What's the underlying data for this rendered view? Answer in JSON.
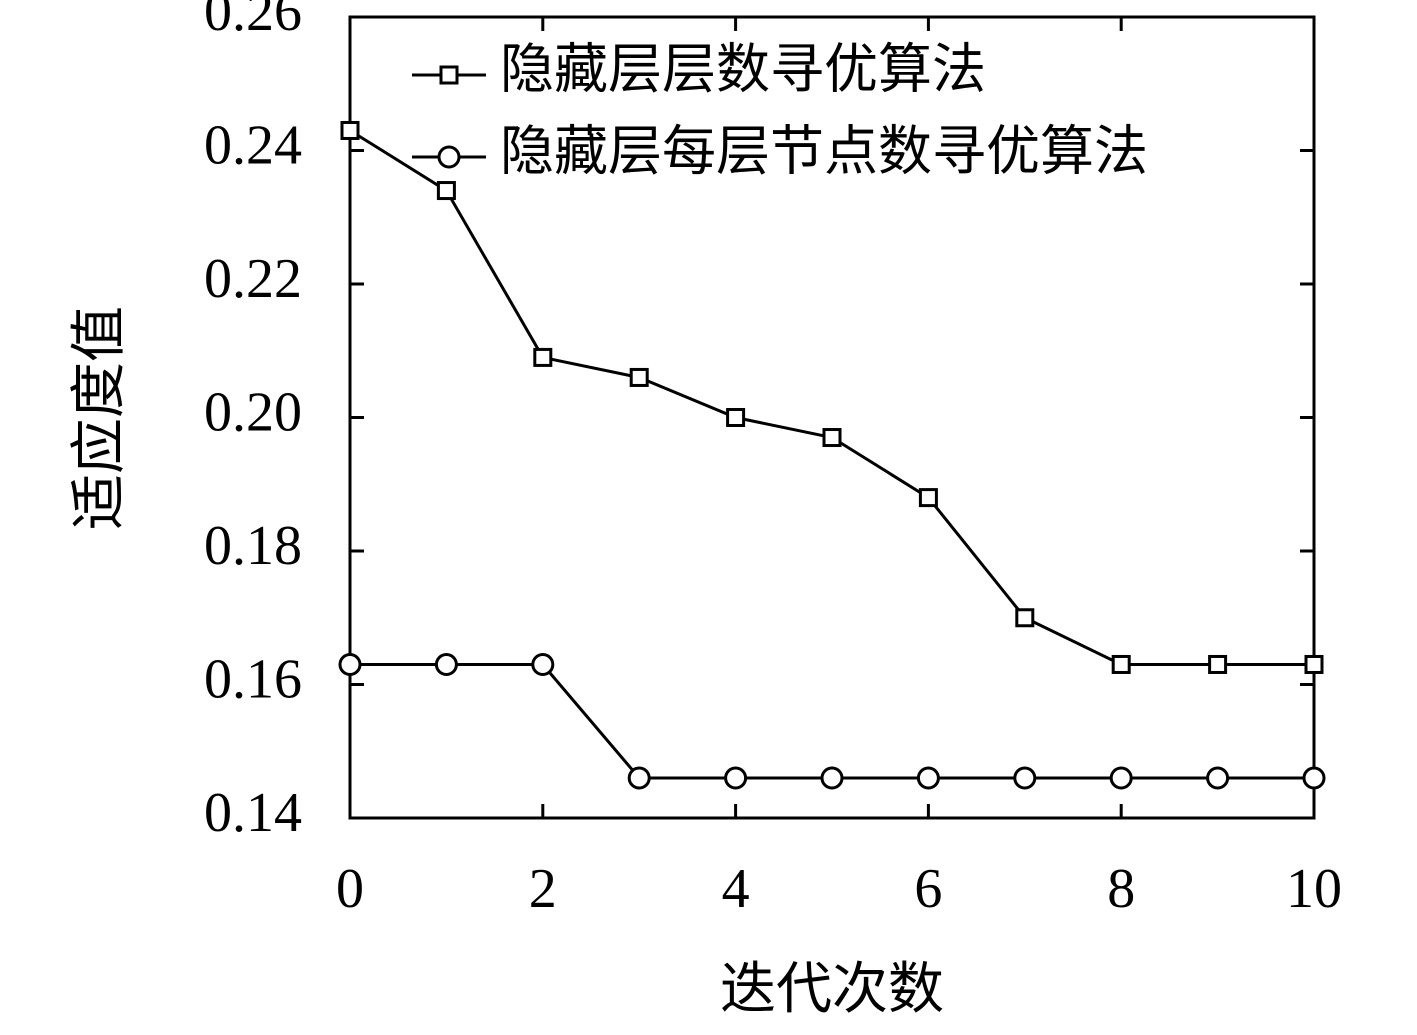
{
  "chart_data": {
    "type": "line",
    "x_label": "迭代次数",
    "y_label": "适应度值",
    "x": [
      0,
      1,
      2,
      3,
      4,
      5,
      6,
      7,
      8,
      9,
      10
    ],
    "series": [
      {
        "name": "隐藏层层数寻优算法",
        "color": "#000000",
        "marker": "square",
        "values": [
          0.243,
          0.234,
          0.209,
          0.206,
          0.2,
          0.197,
          0.188,
          0.17,
          0.163,
          0.163,
          0.163
        ]
      },
      {
        "name": "隐藏层每层节点数寻优算法",
        "color": "#000000",
        "marker": "circle",
        "values": [
          0.163,
          0.163,
          0.163,
          0.146,
          0.146,
          0.146,
          0.146,
          0.146,
          0.146,
          0.146,
          0.146
        ]
      }
    ],
    "xlim": [
      0,
      10
    ],
    "xticks": [
      0,
      2,
      4,
      6,
      8,
      10
    ],
    "ylim": [
      0.14,
      0.26
    ],
    "yticks": [
      {
        "value": 0.14,
        "label": "0.14"
      },
      {
        "value": 0.16,
        "label": "0.16"
      },
      {
        "value": 0.18,
        "label": "0.18"
      },
      {
        "value": 0.2,
        "label": "0.20"
      },
      {
        "value": 0.22,
        "label": "0.22"
      },
      {
        "value": 0.24,
        "label": "0.24"
      },
      {
        "value": 0.26,
        "label": "0.26"
      }
    ],
    "legend": "upper-left"
  }
}
